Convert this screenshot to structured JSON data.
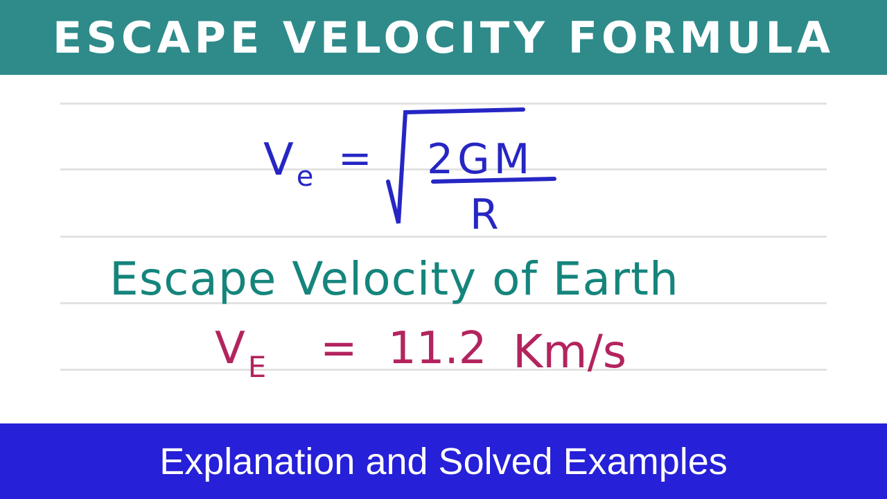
{
  "header": {
    "title": "ESCAPE VELOCITY FORMULA",
    "color": "#2e8b8a"
  },
  "formula": {
    "lhs_symbol": "V",
    "lhs_subscript": "e",
    "equals": "=",
    "numerator": "2GM",
    "denominator": "R",
    "color": "#2626c4"
  },
  "earth_heading": {
    "text": "Escape Velocity of Earth",
    "color": "#15857c"
  },
  "earth_value": {
    "symbol": "V",
    "subscript": "E",
    "equals": "=",
    "value": "11.2",
    "unit": "Km/s",
    "color": "#b3245e"
  },
  "footer": {
    "subtitle": "Explanation and Solved Examples",
    "color": "#2620d8"
  }
}
